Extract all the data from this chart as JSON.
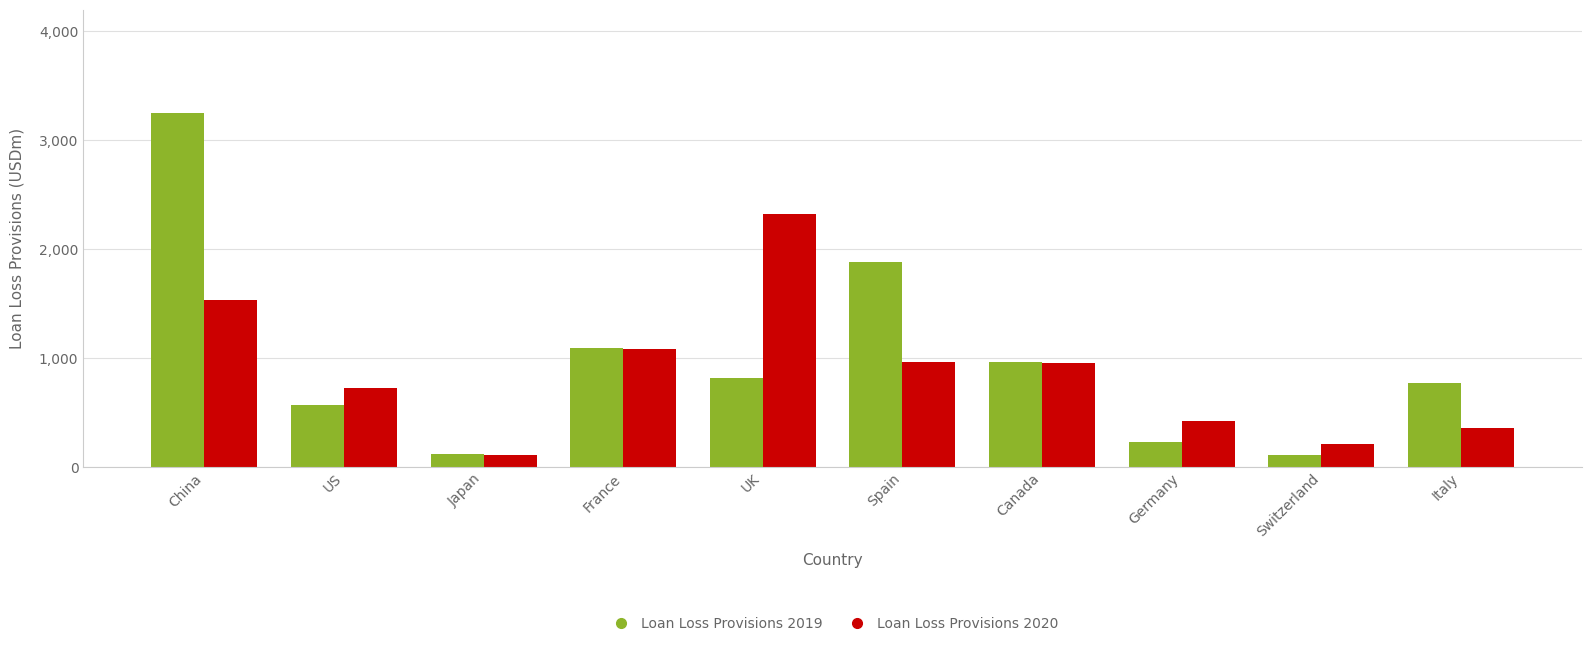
{
  "categories": [
    "China",
    "US",
    "Japan",
    "France",
    "UK",
    "Spain",
    "Canada",
    "Germany",
    "Switzerland",
    "Italy"
  ],
  "values_2019": [
    3250,
    570,
    120,
    1090,
    820,
    1880,
    960,
    230,
    110,
    770
  ],
  "values_2020": [
    1530,
    720,
    110,
    1080,
    2320,
    960,
    950,
    420,
    210,
    360
  ],
  "color_2019": "#8db52a",
  "color_2020": "#cc0000",
  "ylabel": "Loan Loss Provisions (USDm)",
  "xlabel": "Country",
  "ylim": [
    0,
    4200
  ],
  "yticks": [
    0,
    1000,
    2000,
    3000,
    4000
  ],
  "legend_2019": "Loan Loss Provisions 2019",
  "legend_2020": "Loan Loss Provisions 2020",
  "background_color": "#ffffff",
  "bar_width": 0.38,
  "label_fontsize": 11,
  "tick_fontsize": 10,
  "legend_fontsize": 10
}
